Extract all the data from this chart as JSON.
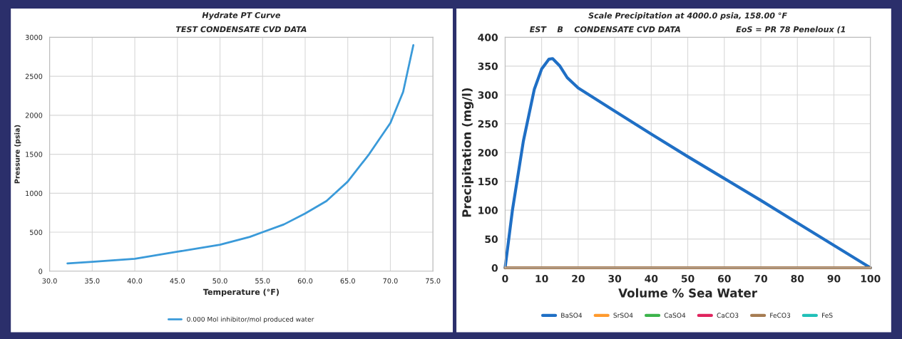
{
  "chart_data": [
    {
      "type": "line",
      "title": "Hydrate PT Curve",
      "subtitle": "TEST CONDENSATE CVD DATA",
      "xlabel": "Temperature (°F)",
      "ylabel": "Pressure (psia)",
      "x": [
        32.1,
        35,
        40,
        45,
        50,
        53.5,
        55,
        57.5,
        60,
        62.5,
        65,
        67.5,
        70,
        71.5,
        72.7
      ],
      "series": [
        {
          "name": "0.000 Mol inhibitor/mol produced water",
          "color": "#3a9ad9",
          "values": [
            100,
            120,
            160,
            250,
            340,
            440,
            500,
            600,
            740,
            900,
            1150,
            1500,
            1900,
            2300,
            2900
          ]
        }
      ],
      "xlim": [
        30,
        75
      ],
      "xticks": [
        {
          "value": 30,
          "label": "30.0"
        },
        {
          "value": 35,
          "label": "35.0"
        },
        {
          "value": 40,
          "label": "40.0"
        },
        {
          "value": 45,
          "label": "45.0"
        },
        {
          "value": 50,
          "label": "50.0"
        },
        {
          "value": 55,
          "label": "55.0"
        },
        {
          "value": 60,
          "label": "60.0"
        },
        {
          "value": 65,
          "label": "65.0"
        },
        {
          "value": 70,
          "label": "70.0"
        },
        {
          "value": 75,
          "label": "75.0"
        }
      ],
      "ylim": [
        0,
        3000
      ],
      "yticks": [
        0,
        500,
        1000,
        1500,
        2000,
        2500,
        3000
      ],
      "grid": true,
      "legend": "bottom"
    },
    {
      "type": "line",
      "title": "Scale Precipitation at 4000.0 psia, 158.00 °F",
      "subtitle": "EST    B    CONDENSATE CVD DATA                    EoS = PR 78 Peneloux (1",
      "xlabel": "Volume % Sea Water",
      "ylabel": "Precipitation (mg/l)",
      "x": [
        0,
        2,
        5,
        8,
        10,
        12,
        13,
        15,
        17,
        20,
        30,
        40,
        50,
        60,
        70,
        80,
        90,
        100
      ],
      "series": [
        {
          "name": "BaSO4",
          "color": "#1f6fc5",
          "values": [
            0,
            100,
            220,
            310,
            345,
            362,
            363,
            350,
            330,
            312,
            272,
            232,
            193,
            155,
            117,
            78,
            39,
            0
          ]
        },
        {
          "name": "SrSO4",
          "color": "#ff9a2e",
          "values": [
            null,
            null,
            null,
            null,
            null,
            null,
            null,
            null,
            null,
            null,
            null,
            null,
            null,
            null,
            null,
            null,
            null,
            null
          ]
        },
        {
          "name": "CaSO4",
          "color": "#3cb44b",
          "values": [
            null,
            null,
            null,
            null,
            null,
            null,
            null,
            null,
            null,
            null,
            null,
            null,
            null,
            null,
            null,
            null,
            null,
            null
          ]
        },
        {
          "name": "CaCO3",
          "color": "#e0245e",
          "values": [
            null,
            null,
            null,
            null,
            null,
            null,
            null,
            null,
            null,
            null,
            null,
            null,
            null,
            null,
            null,
            null,
            null,
            null
          ]
        },
        {
          "name": "FeCO3",
          "color": "#a67c52",
          "x": [
            0,
            100
          ],
          "values": [
            0,
            0
          ]
        },
        {
          "name": "FeS",
          "color": "#20c0b8",
          "values": [
            null,
            null,
            null,
            null,
            null,
            null,
            null,
            null,
            null,
            null,
            null,
            null,
            null,
            null,
            null,
            null,
            null,
            null
          ]
        }
      ],
      "xlim": [
        0,
        100
      ],
      "xticks": [
        0,
        10,
        20,
        30,
        40,
        50,
        60,
        70,
        80,
        90,
        100
      ],
      "ylim": [
        0,
        400
      ],
      "yticks": [
        0,
        50,
        100,
        150,
        200,
        250,
        300,
        350,
        400
      ],
      "grid": true,
      "legend": "bottom"
    }
  ]
}
